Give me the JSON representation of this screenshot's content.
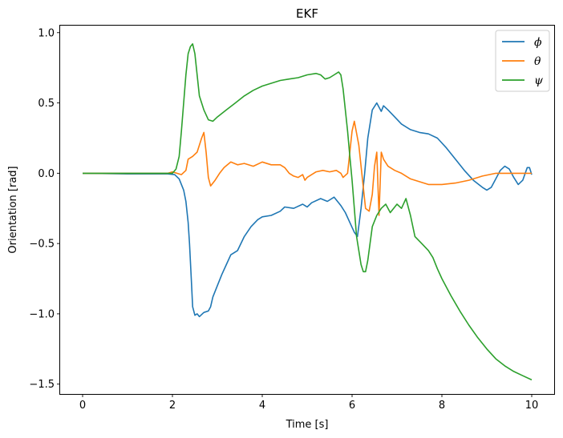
{
  "chart_data": {
    "type": "line",
    "title": "EKF",
    "xlabel": "Time [s]",
    "ylabel": "Orientation [rad]",
    "xlim": [
      -0.5,
      10.5
    ],
    "ylim": [
      -1.57,
      1.05
    ],
    "x_ticks": [
      0,
      2,
      4,
      6,
      8,
      10
    ],
    "x_tick_labels": [
      "0",
      "2",
      "4",
      "6",
      "8",
      "10"
    ],
    "y_ticks": [
      1.0,
      0.5,
      0.0,
      -0.5,
      -1.0,
      -1.5
    ],
    "y_tick_labels": [
      "1.0",
      "0.5",
      "0.0",
      "−0.5",
      "−1.0",
      "−1.5"
    ],
    "grid": false,
    "legend_position": "top-right",
    "series": [
      {
        "name": "ϕ",
        "color": "#1f77b4",
        "points": [
          [
            0,
            0
          ],
          [
            1,
            -0.005
          ],
          [
            1.9,
            -0.005
          ],
          [
            2.05,
            -0.01
          ],
          [
            2.15,
            -0.04
          ],
          [
            2.25,
            -0.12
          ],
          [
            2.3,
            -0.2
          ],
          [
            2.35,
            -0.35
          ],
          [
            2.38,
            -0.5
          ],
          [
            2.42,
            -0.75
          ],
          [
            2.45,
            -0.95
          ],
          [
            2.5,
            -1.01
          ],
          [
            2.55,
            -1.0
          ],
          [
            2.6,
            -1.02
          ],
          [
            2.7,
            -0.99
          ],
          [
            2.8,
            -0.98
          ],
          [
            2.85,
            -0.95
          ],
          [
            2.9,
            -0.88
          ],
          [
            3.0,
            -0.8
          ],
          [
            3.1,
            -0.72
          ],
          [
            3.2,
            -0.65
          ],
          [
            3.3,
            -0.58
          ],
          [
            3.45,
            -0.55
          ],
          [
            3.6,
            -0.45
          ],
          [
            3.75,
            -0.38
          ],
          [
            3.9,
            -0.33
          ],
          [
            4.0,
            -0.31
          ],
          [
            4.2,
            -0.3
          ],
          [
            4.4,
            -0.27
          ],
          [
            4.5,
            -0.24
          ],
          [
            4.7,
            -0.25
          ],
          [
            4.9,
            -0.22
          ],
          [
            5.0,
            -0.24
          ],
          [
            5.1,
            -0.21
          ],
          [
            5.3,
            -0.18
          ],
          [
            5.45,
            -0.2
          ],
          [
            5.6,
            -0.17
          ],
          [
            5.75,
            -0.23
          ],
          [
            5.85,
            -0.28
          ],
          [
            5.95,
            -0.35
          ],
          [
            6.05,
            -0.42
          ],
          [
            6.12,
            -0.45
          ],
          [
            6.2,
            -0.25
          ],
          [
            6.28,
            0.0
          ],
          [
            6.35,
            0.25
          ],
          [
            6.45,
            0.45
          ],
          [
            6.55,
            0.5
          ],
          [
            6.65,
            0.44
          ],
          [
            6.7,
            0.48
          ],
          [
            6.8,
            0.45
          ],
          [
            6.95,
            0.4
          ],
          [
            7.1,
            0.35
          ],
          [
            7.3,
            0.31
          ],
          [
            7.5,
            0.29
          ],
          [
            7.7,
            0.28
          ],
          [
            7.9,
            0.25
          ],
          [
            8.1,
            0.18
          ],
          [
            8.3,
            0.1
          ],
          [
            8.5,
            0.02
          ],
          [
            8.7,
            -0.05
          ],
          [
            8.9,
            -0.1
          ],
          [
            9.0,
            -0.12
          ],
          [
            9.1,
            -0.1
          ],
          [
            9.2,
            -0.04
          ],
          [
            9.3,
            0.02
          ],
          [
            9.4,
            0.05
          ],
          [
            9.5,
            0.03
          ],
          [
            9.6,
            -0.03
          ],
          [
            9.7,
            -0.08
          ],
          [
            9.8,
            -0.05
          ],
          [
            9.9,
            0.04
          ],
          [
            9.95,
            0.04
          ],
          [
            10.0,
            -0.01
          ]
        ]
      },
      {
        "name": "θ",
        "color": "#ff7f0e",
        "points": [
          [
            0,
            0
          ],
          [
            1,
            0
          ],
          [
            1.9,
            0.0
          ],
          [
            2.0,
            0.01
          ],
          [
            2.1,
            0.0
          ],
          [
            2.2,
            -0.01
          ],
          [
            2.3,
            0.02
          ],
          [
            2.35,
            0.1
          ],
          [
            2.45,
            0.12
          ],
          [
            2.55,
            0.15
          ],
          [
            2.65,
            0.25
          ],
          [
            2.7,
            0.29
          ],
          [
            2.75,
            0.15
          ],
          [
            2.8,
            -0.03
          ],
          [
            2.85,
            -0.09
          ],
          [
            2.95,
            -0.05
          ],
          [
            3.05,
            0.0
          ],
          [
            3.15,
            0.04
          ],
          [
            3.3,
            0.08
          ],
          [
            3.45,
            0.06
          ],
          [
            3.6,
            0.07
          ],
          [
            3.8,
            0.05
          ],
          [
            4.0,
            0.08
          ],
          [
            4.2,
            0.06
          ],
          [
            4.4,
            0.06
          ],
          [
            4.5,
            0.04
          ],
          [
            4.6,
            0.0
          ],
          [
            4.7,
            -0.02
          ],
          [
            4.8,
            -0.03
          ],
          [
            4.9,
            -0.01
          ],
          [
            4.95,
            -0.05
          ],
          [
            5.0,
            -0.03
          ],
          [
            5.2,
            0.01
          ],
          [
            5.35,
            0.02
          ],
          [
            5.5,
            0.01
          ],
          [
            5.65,
            0.02
          ],
          [
            5.75,
            0.0
          ],
          [
            5.8,
            -0.03
          ],
          [
            5.9,
            0.0
          ],
          [
            5.95,
            0.15
          ],
          [
            6.0,
            0.3
          ],
          [
            6.05,
            0.37
          ],
          [
            6.15,
            0.2
          ],
          [
            6.25,
            -0.1
          ],
          [
            6.3,
            -0.25
          ],
          [
            6.38,
            -0.27
          ],
          [
            6.45,
            -0.15
          ],
          [
            6.5,
            0.05
          ],
          [
            6.55,
            0.15
          ],
          [
            6.6,
            -0.3
          ],
          [
            6.65,
            0.15
          ],
          [
            6.7,
            0.1
          ],
          [
            6.8,
            0.05
          ],
          [
            6.95,
            0.02
          ],
          [
            7.1,
            0.0
          ],
          [
            7.3,
            -0.04
          ],
          [
            7.5,
            -0.06
          ],
          [
            7.7,
            -0.08
          ],
          [
            8.0,
            -0.08
          ],
          [
            8.3,
            -0.07
          ],
          [
            8.6,
            -0.05
          ],
          [
            8.9,
            -0.02
          ],
          [
            9.2,
            0.0
          ],
          [
            9.5,
            0.0
          ],
          [
            9.8,
            0.0
          ],
          [
            10.0,
            0.0
          ]
        ]
      },
      {
        "name": "ψ",
        "color": "#2ca02c",
        "points": [
          [
            0,
            0
          ],
          [
            1,
            0
          ],
          [
            1.9,
            0.0
          ],
          [
            2.0,
            0.0
          ],
          [
            2.08,
            0.03
          ],
          [
            2.15,
            0.12
          ],
          [
            2.2,
            0.3
          ],
          [
            2.25,
            0.5
          ],
          [
            2.3,
            0.7
          ],
          [
            2.35,
            0.85
          ],
          [
            2.4,
            0.9
          ],
          [
            2.45,
            0.92
          ],
          [
            2.5,
            0.85
          ],
          [
            2.55,
            0.7
          ],
          [
            2.6,
            0.55
          ],
          [
            2.7,
            0.45
          ],
          [
            2.8,
            0.38
          ],
          [
            2.9,
            0.37
          ],
          [
            3.0,
            0.4
          ],
          [
            3.2,
            0.45
          ],
          [
            3.4,
            0.5
          ],
          [
            3.6,
            0.55
          ],
          [
            3.8,
            0.59
          ],
          [
            4.0,
            0.62
          ],
          [
            4.2,
            0.64
          ],
          [
            4.4,
            0.66
          ],
          [
            4.6,
            0.67
          ],
          [
            4.8,
            0.68
          ],
          [
            5.0,
            0.7
          ],
          [
            5.2,
            0.71
          ],
          [
            5.3,
            0.7
          ],
          [
            5.4,
            0.67
          ],
          [
            5.5,
            0.68
          ],
          [
            5.6,
            0.7
          ],
          [
            5.7,
            0.72
          ],
          [
            5.75,
            0.7
          ],
          [
            5.8,
            0.6
          ],
          [
            5.85,
            0.45
          ],
          [
            5.9,
            0.3
          ],
          [
            5.95,
            0.12
          ],
          [
            6.0,
            -0.05
          ],
          [
            6.05,
            -0.25
          ],
          [
            6.1,
            -0.45
          ],
          [
            6.15,
            -0.55
          ],
          [
            6.2,
            -0.65
          ],
          [
            6.25,
            -0.7
          ],
          [
            6.3,
            -0.7
          ],
          [
            6.35,
            -0.62
          ],
          [
            6.4,
            -0.5
          ],
          [
            6.45,
            -0.38
          ],
          [
            6.55,
            -0.3
          ],
          [
            6.65,
            -0.25
          ],
          [
            6.75,
            -0.22
          ],
          [
            6.85,
            -0.28
          ],
          [
            7.0,
            -0.22
          ],
          [
            7.1,
            -0.25
          ],
          [
            7.2,
            -0.18
          ],
          [
            7.3,
            -0.3
          ],
          [
            7.4,
            -0.45
          ],
          [
            7.55,
            -0.5
          ],
          [
            7.7,
            -0.55
          ],
          [
            7.8,
            -0.6
          ],
          [
            7.9,
            -0.68
          ],
          [
            8.0,
            -0.75
          ],
          [
            8.2,
            -0.87
          ],
          [
            8.4,
            -0.98
          ],
          [
            8.6,
            -1.08
          ],
          [
            8.8,
            -1.17
          ],
          [
            9.0,
            -1.25
          ],
          [
            9.2,
            -1.32
          ],
          [
            9.4,
            -1.37
          ],
          [
            9.6,
            -1.41
          ],
          [
            9.8,
            -1.44
          ],
          [
            10.0,
            -1.47
          ]
        ]
      }
    ]
  }
}
